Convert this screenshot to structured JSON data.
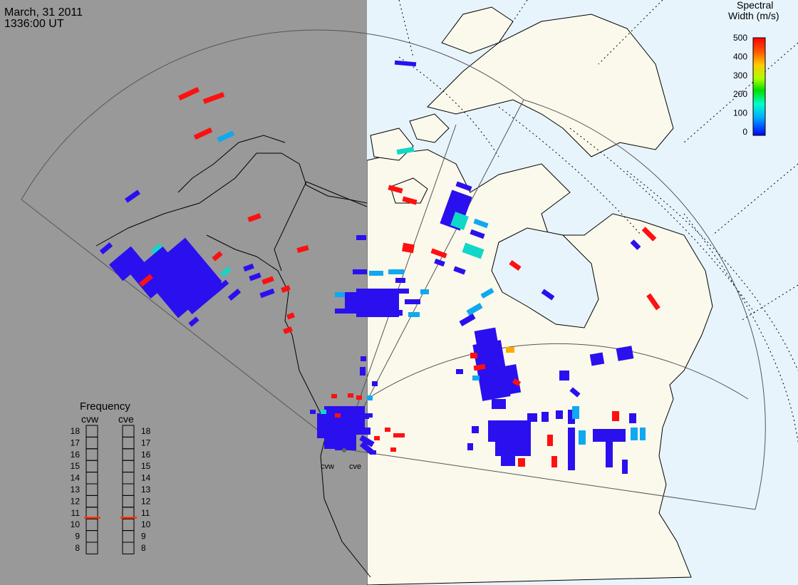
{
  "header": {
    "date": "March, 31 2011",
    "time": "1336:00 UT"
  },
  "colorbar": {
    "title_line1": "Spectral",
    "title_line2": "Width (m/s)",
    "ticks": [
      "500",
      "400",
      "300",
      "200",
      "100",
      "0"
    ],
    "colors": [
      "#0000ff",
      "#00aaff",
      "#00ffcc",
      "#00dd00",
      "#aaff00",
      "#ffcc00",
      "#ff5500",
      "#ff0000"
    ]
  },
  "frequency_panel": {
    "title": "Frequency",
    "left_label": "cvw",
    "right_label": "cve",
    "scale": [
      "18",
      "17",
      "16",
      "15",
      "14",
      "13",
      "12",
      "11",
      "10",
      "9",
      "8"
    ],
    "cvw_frequency_mhz": 10.6,
    "cve_frequency_mhz": 10.6,
    "marker_color": "#ff3300"
  },
  "radar_sites": {
    "west_label": "cvw",
    "east_label": "cve"
  },
  "map": {
    "night_color": "#999999",
    "land_color": "#fbf9ec",
    "ocean_color": "#e8f4fc",
    "coast_color": "#000000"
  }
}
